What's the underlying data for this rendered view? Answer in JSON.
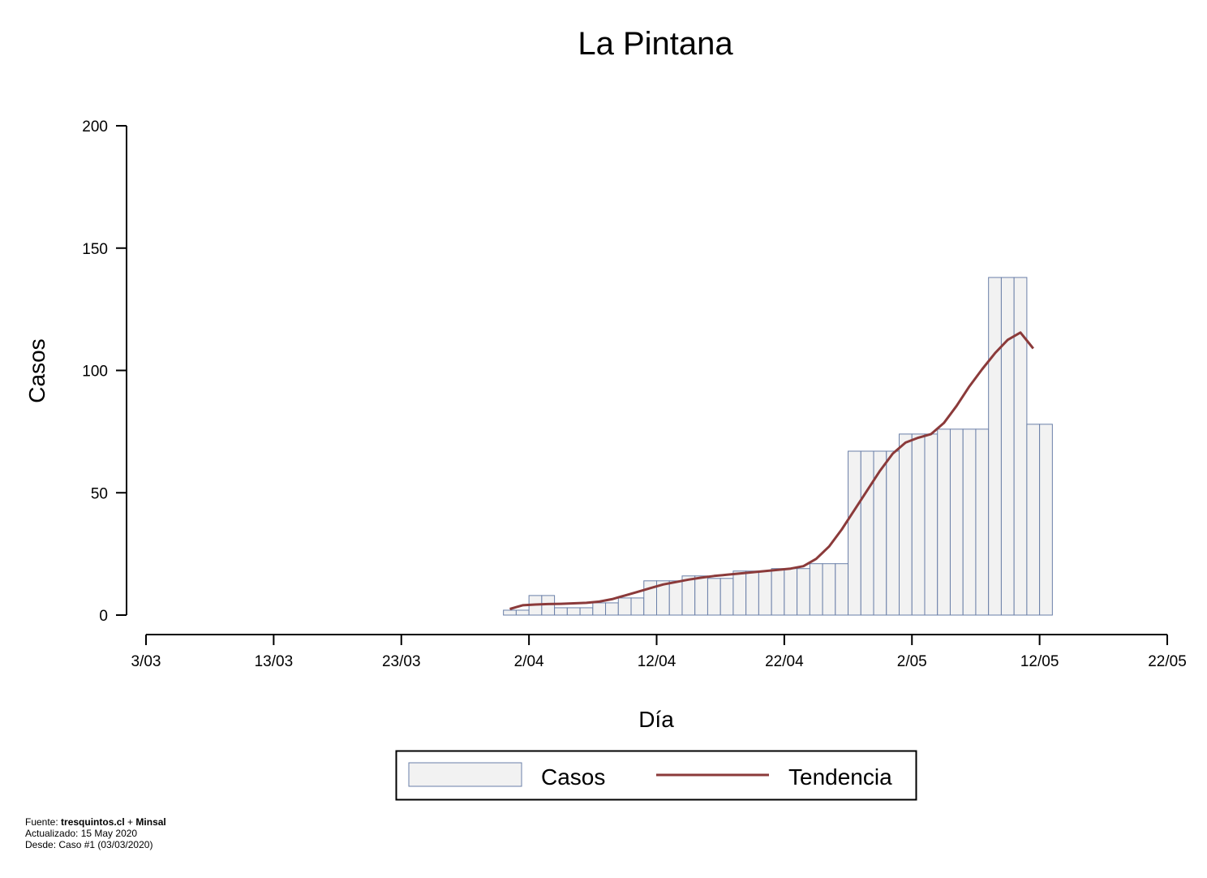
{
  "chart_data": {
    "type": "bar",
    "title": "La Pintana",
    "xlabel": "Día",
    "ylabel": "Casos",
    "ylim": [
      0,
      200
    ],
    "yticks": [
      0,
      50,
      100,
      150,
      200
    ],
    "x_date_range": [
      "2020-03-03",
      "2020-05-22"
    ],
    "xtick_dates": [
      "2020-03-03",
      "2020-03-13",
      "2020-03-23",
      "2020-04-02",
      "2020-04-12",
      "2020-04-22",
      "2020-05-02",
      "2020-05-12",
      "2020-05-22"
    ],
    "xtick_labels": [
      "3/03",
      "13/03",
      "23/03",
      "2/04",
      "12/04",
      "22/04",
      "2/05",
      "12/05",
      "22/05"
    ],
    "x": [
      "2020-03-31",
      "2020-04-01",
      "2020-04-02",
      "2020-04-03",
      "2020-04-04",
      "2020-04-05",
      "2020-04-06",
      "2020-04-07",
      "2020-04-08",
      "2020-04-09",
      "2020-04-10",
      "2020-04-11",
      "2020-04-12",
      "2020-04-13",
      "2020-04-14",
      "2020-04-15",
      "2020-04-16",
      "2020-04-17",
      "2020-04-18",
      "2020-04-19",
      "2020-04-20",
      "2020-04-21",
      "2020-04-22",
      "2020-04-23",
      "2020-04-24",
      "2020-04-25",
      "2020-04-26",
      "2020-04-27",
      "2020-04-28",
      "2020-04-29",
      "2020-04-30",
      "2020-05-01",
      "2020-05-02",
      "2020-05-03",
      "2020-05-04",
      "2020-05-05",
      "2020-05-06",
      "2020-05-07",
      "2020-05-08",
      "2020-05-09",
      "2020-05-10",
      "2020-05-11",
      "2020-05-12"
    ],
    "series": [
      {
        "name": "Casos",
        "kind": "bar",
        "color": "#f2f2f2",
        "stroke": "#6a7fa8",
        "values": [
          2,
          2,
          8,
          8,
          3,
          3,
          3,
          5,
          5,
          7,
          7,
          14,
          14,
          14,
          16,
          16,
          15,
          15,
          18,
          18,
          18,
          19,
          19,
          19,
          21,
          21,
          21,
          67,
          67,
          67,
          67,
          74,
          74,
          74,
          76,
          76,
          76,
          76,
          138,
          138,
          138,
          78,
          78
        ]
      },
      {
        "name": "Tendencia",
        "kind": "line",
        "color": "#8b3a3a",
        "values": [
          2.5,
          4,
          4.3,
          4.5,
          4.6,
          4.8,
          5,
          5.5,
          6.5,
          8,
          9.5,
          11,
          12.5,
          13.5,
          14.5,
          15.3,
          16,
          16.5,
          17,
          17.5,
          18,
          18.5,
          19,
          20,
          23,
          28,
          35,
          43,
          51,
          59,
          66,
          70.5,
          72.5,
          74,
          78.5,
          85.5,
          93.5,
          100.5,
          107,
          112.5,
          115.5,
          109,
          null
        ]
      }
    ],
    "legend": {
      "position": "bottom",
      "items": [
        "Casos",
        "Tendencia"
      ]
    }
  },
  "footer": {
    "source_prefix": "Fuente: ",
    "source_a": "tresquintos.cl",
    "source_sep": " + ",
    "source_b": "Minsal",
    "updated": "Actualizado: 15 May 2020",
    "since": "Desde: Caso #1  (03/03/2020)"
  }
}
